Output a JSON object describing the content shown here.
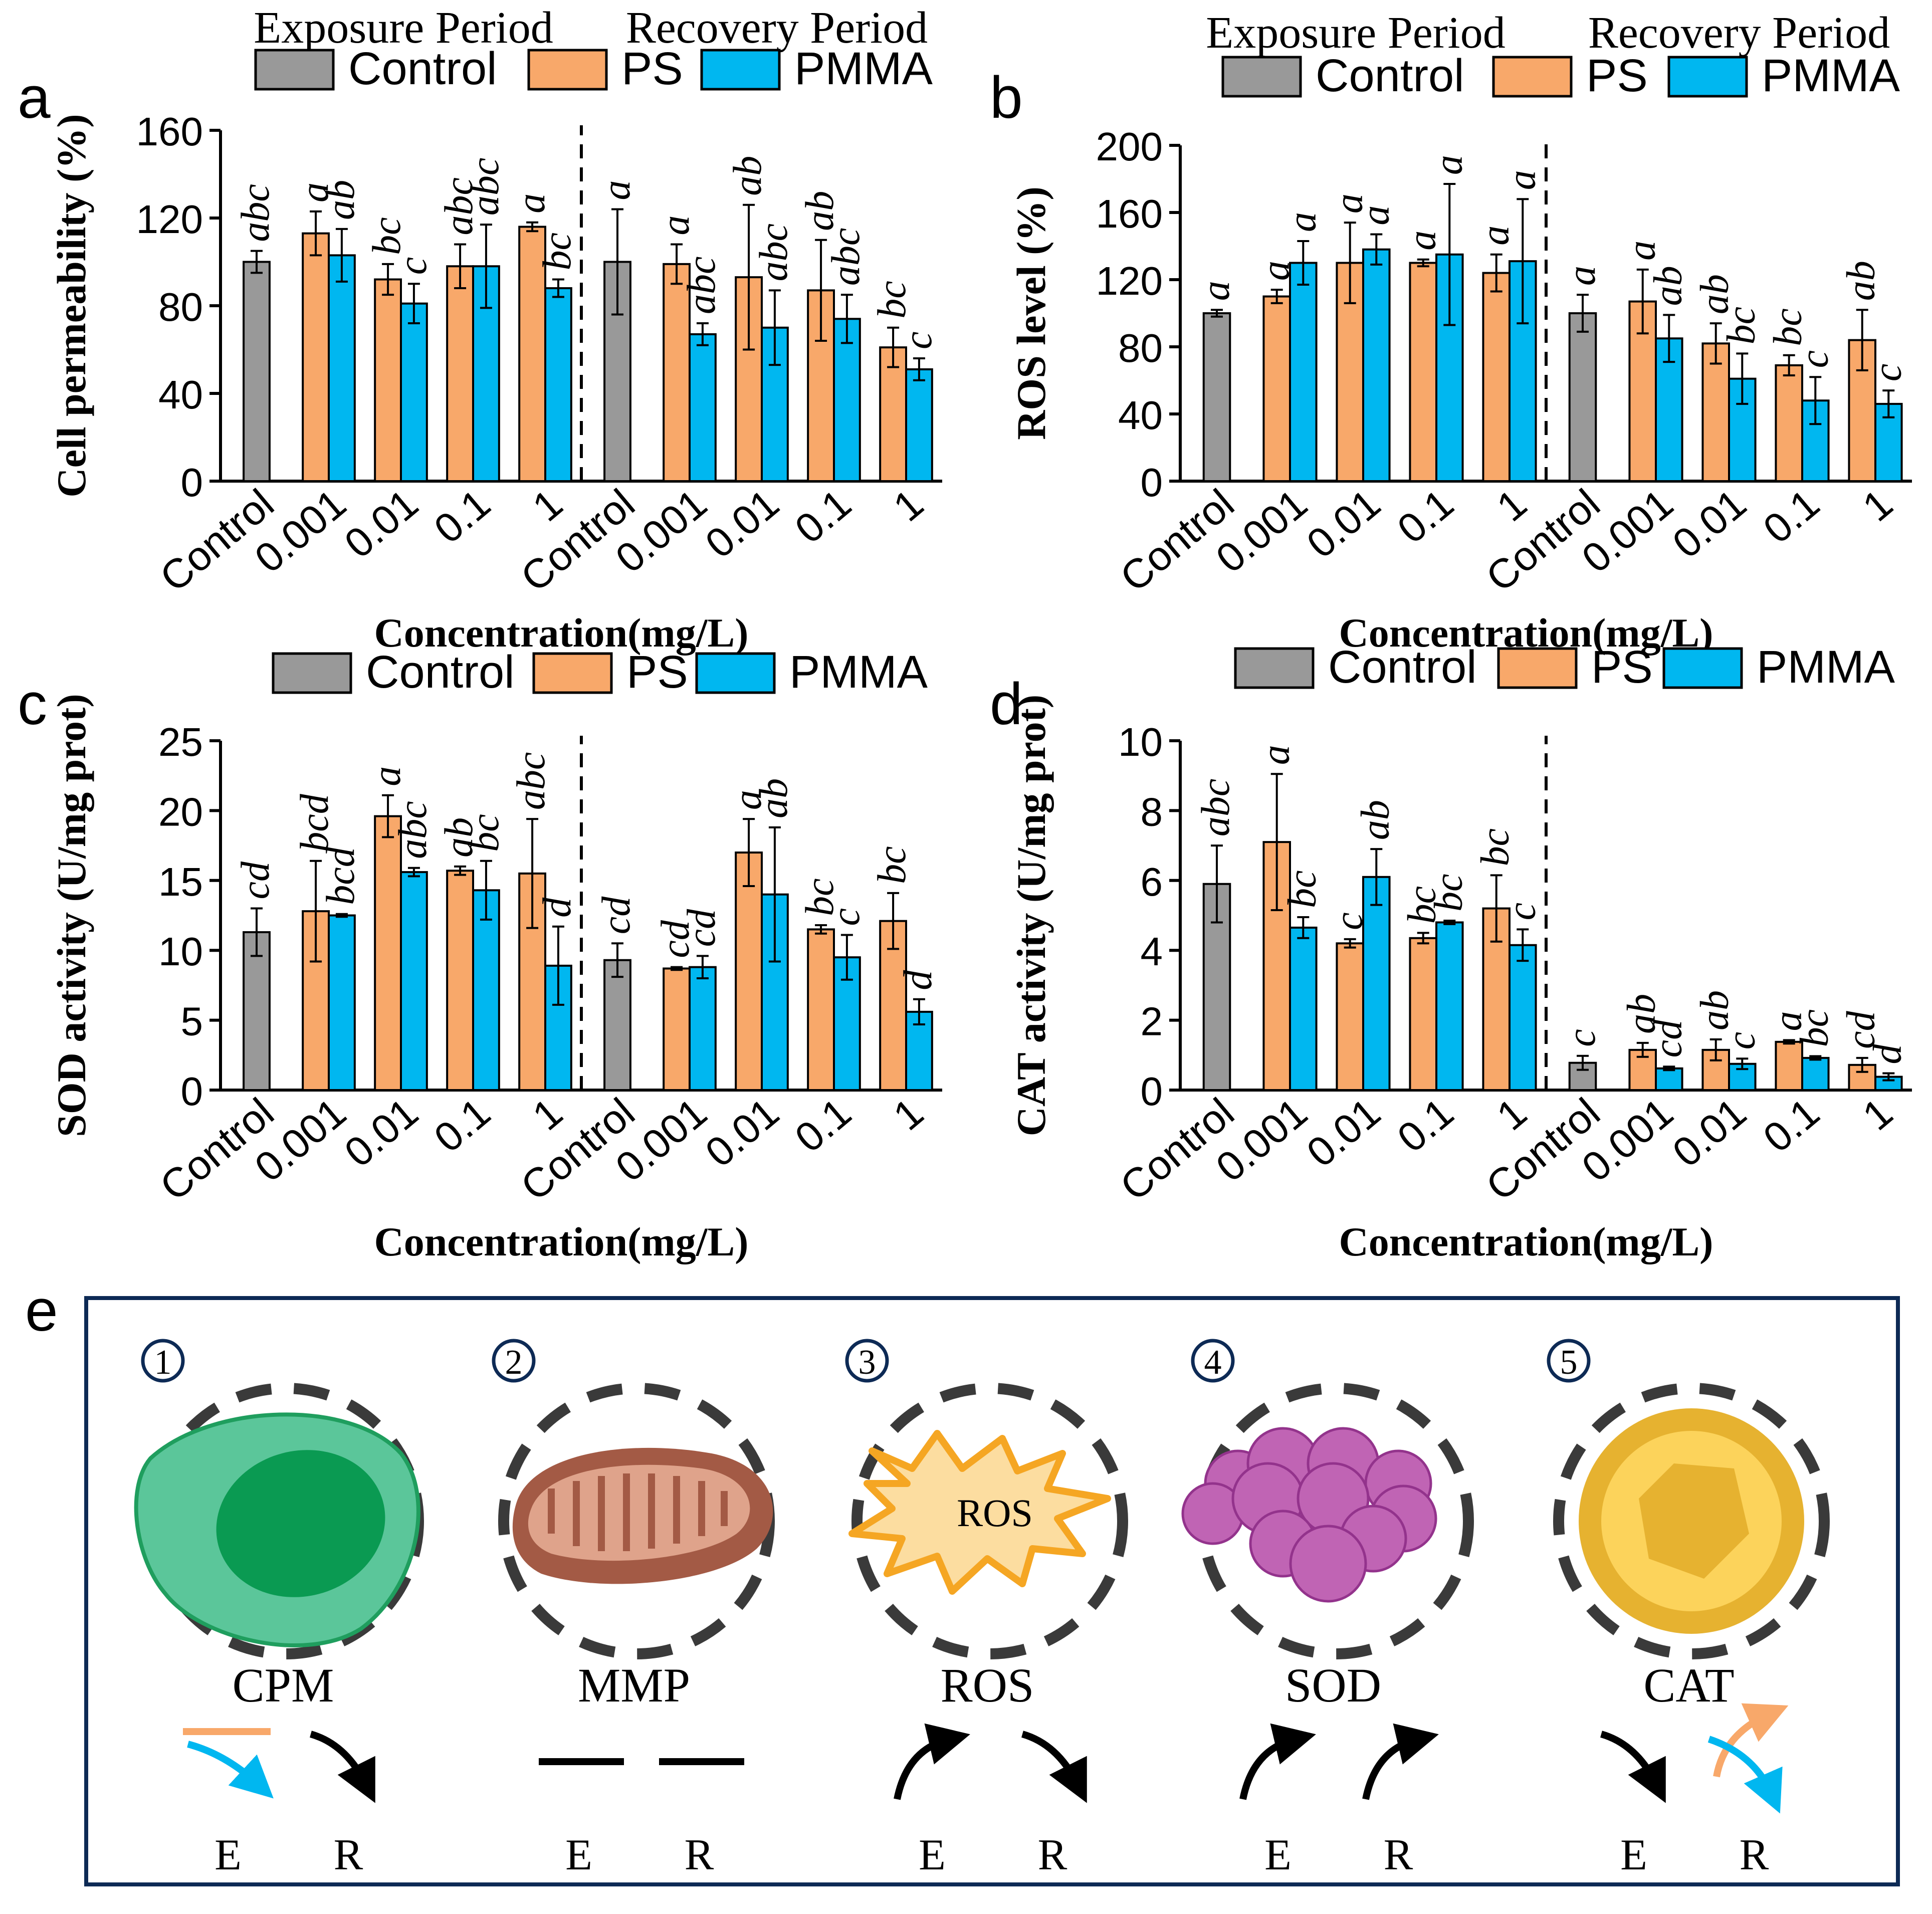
{
  "colors": {
    "control": "#999999",
    "ps": "#F8A86A",
    "pmma": "#00B7F0",
    "frame": "#0D2A55"
  },
  "period_labels": {
    "exposure": "Exposure Period",
    "recovery": "Recovery Period"
  },
  "legend": [
    "Control",
    "PS",
    "PMMA"
  ],
  "xlabel": "Concentration(mg/L)",
  "categories": [
    "Control",
    "0.001",
    "0.01",
    "0.1",
    "1",
    "Control",
    "0.001",
    "0.01",
    "0.1",
    "1"
  ],
  "chart_data": [
    {
      "panel": "a",
      "type": "bar",
      "ylabel": "Cell permeability (%)",
      "ylim": [
        0,
        160
      ],
      "yticks": [
        0,
        40,
        80,
        120,
        160
      ],
      "control": [
        {
          "value": 100,
          "err": 5,
          "letter": "abc"
        },
        {
          "value": 100,
          "err": 24,
          "letter": "a"
        }
      ],
      "series": [
        {
          "name": "PS",
          "values": [
            113,
            92,
            98,
            116,
            99,
            93,
            87,
            61
          ],
          "errors": [
            10,
            7,
            10,
            2,
            9,
            33,
            23,
            9
          ],
          "letters": [
            "a",
            "bc",
            "abc",
            "a",
            "a",
            "ab",
            "ab",
            "bc"
          ]
        },
        {
          "name": "PMMA",
          "values": [
            103,
            81,
            98,
            88,
            67,
            70,
            74,
            51
          ],
          "errors": [
            12,
            9,
            19,
            4,
            5,
            17,
            11,
            5
          ],
          "letters": [
            "ab",
            "c",
            "abc",
            "bc",
            "abc",
            "abc",
            "abc",
            "c"
          ]
        }
      ]
    },
    {
      "panel": "b",
      "type": "bar",
      "ylabel": "ROS level (%)",
      "ylim": [
        0,
        200
      ],
      "yticks": [
        0,
        40,
        80,
        120,
        160,
        200
      ],
      "control": [
        {
          "value": 100,
          "err": 2,
          "letter": "a"
        },
        {
          "value": 100,
          "err": 11,
          "letter": "a"
        }
      ],
      "series": [
        {
          "name": "PS",
          "values": [
            110,
            130,
            130,
            124,
            107,
            82,
            69,
            84
          ],
          "errors": [
            4,
            24,
            2,
            11,
            19,
            12,
            6,
            18
          ],
          "letters": [
            "a",
            "a",
            "a",
            "a",
            "a",
            "ab",
            "bc",
            "ab"
          ]
        },
        {
          "name": "PMMA",
          "values": [
            130,
            138,
            135,
            131,
            85,
            61,
            48,
            46
          ],
          "errors": [
            13,
            9,
            42,
            37,
            14,
            15,
            14,
            8
          ],
          "letters": [
            "a",
            "a",
            "a",
            "a",
            "ab",
            "bc",
            "c",
            "c"
          ]
        }
      ]
    },
    {
      "panel": "c",
      "type": "bar",
      "ylabel": "SOD activity (U/mg prot)",
      "ylim": [
        0,
        25
      ],
      "yticks": [
        0,
        5,
        10,
        15,
        20,
        25
      ],
      "control": [
        {
          "value": 11.3,
          "err": 1.7,
          "letter": "cd"
        },
        {
          "value": 9.3,
          "err": 1.2,
          "letter": "cd"
        }
      ],
      "series": [
        {
          "name": "PS",
          "values": [
            12.8,
            19.6,
            15.7,
            15.5,
            8.7,
            17.0,
            11.5,
            12.1
          ],
          "errors": [
            3.6,
            1.5,
            0.3,
            3.9,
            0.1,
            2.4,
            0.3,
            2.0
          ],
          "letters": [
            "bcd",
            "a",
            "ab",
            "abc",
            "cd",
            "a",
            "bc",
            "bc"
          ]
        },
        {
          "name": "PMMA",
          "values": [
            12.5,
            15.6,
            14.3,
            8.9,
            8.8,
            14.0,
            9.5,
            5.6
          ],
          "errors": [
            0.1,
            0.3,
            2.1,
            2.8,
            0.8,
            4.8,
            1.6,
            0.9
          ],
          "letters": [
            "bcd",
            "abc",
            "bc",
            "d",
            "cd",
            "ab",
            "c",
            "d"
          ]
        }
      ]
    },
    {
      "panel": "d",
      "type": "bar",
      "ylabel": "CAT activity (U/mg prot)",
      "ylim": [
        0,
        10
      ],
      "yticks": [
        0,
        2,
        4,
        6,
        8,
        10
      ],
      "control": [
        {
          "value": 5.9,
          "err": 1.1,
          "letter": "abc"
        },
        {
          "value": 0.78,
          "err": 0.2,
          "letter": "c"
        }
      ],
      "series": [
        {
          "name": "PS",
          "values": [
            7.1,
            4.2,
            4.35,
            5.2,
            1.15,
            1.15,
            1.38,
            0.72
          ],
          "errors": [
            1.95,
            0.12,
            0.15,
            0.95,
            0.2,
            0.3,
            0.05,
            0.2
          ],
          "letters": [
            "a",
            "c",
            "bc",
            "bc",
            "ab",
            "ab",
            "a",
            "cd"
          ]
        },
        {
          "name": "PMMA",
          "values": [
            4.65,
            6.1,
            4.8,
            4.15,
            0.62,
            0.75,
            0.92,
            0.38
          ],
          "errors": [
            0.3,
            0.8,
            0.05,
            0.45,
            0.05,
            0.15,
            0.05,
            0.1
          ],
          "letters": [
            "bc",
            "ab",
            "bc",
            "c",
            "cd",
            "c",
            "bc",
            "d"
          ]
        }
      ]
    }
  ],
  "panel_e": {
    "label": "e",
    "items": [
      {
        "num": "1",
        "name": "CPM",
        "inner": "",
        "e_trend": "PS unchanged, PMMA down",
        "r_trend": "down"
      },
      {
        "num": "2",
        "name": "MMP",
        "inner": "",
        "e_trend": "unchanged",
        "r_trend": "unchanged"
      },
      {
        "num": "3",
        "name": "ROS",
        "inner": "ROS",
        "e_trend": "up",
        "r_trend": "down"
      },
      {
        "num": "4",
        "name": "SOD",
        "inner": "",
        "e_trend": "up",
        "r_trend": "up"
      },
      {
        "num": "5",
        "name": "CAT",
        "inner": "",
        "e_trend": "down",
        "r_trend": "PS up, PMMA down"
      }
    ],
    "e_label": "E",
    "r_label": "R"
  }
}
